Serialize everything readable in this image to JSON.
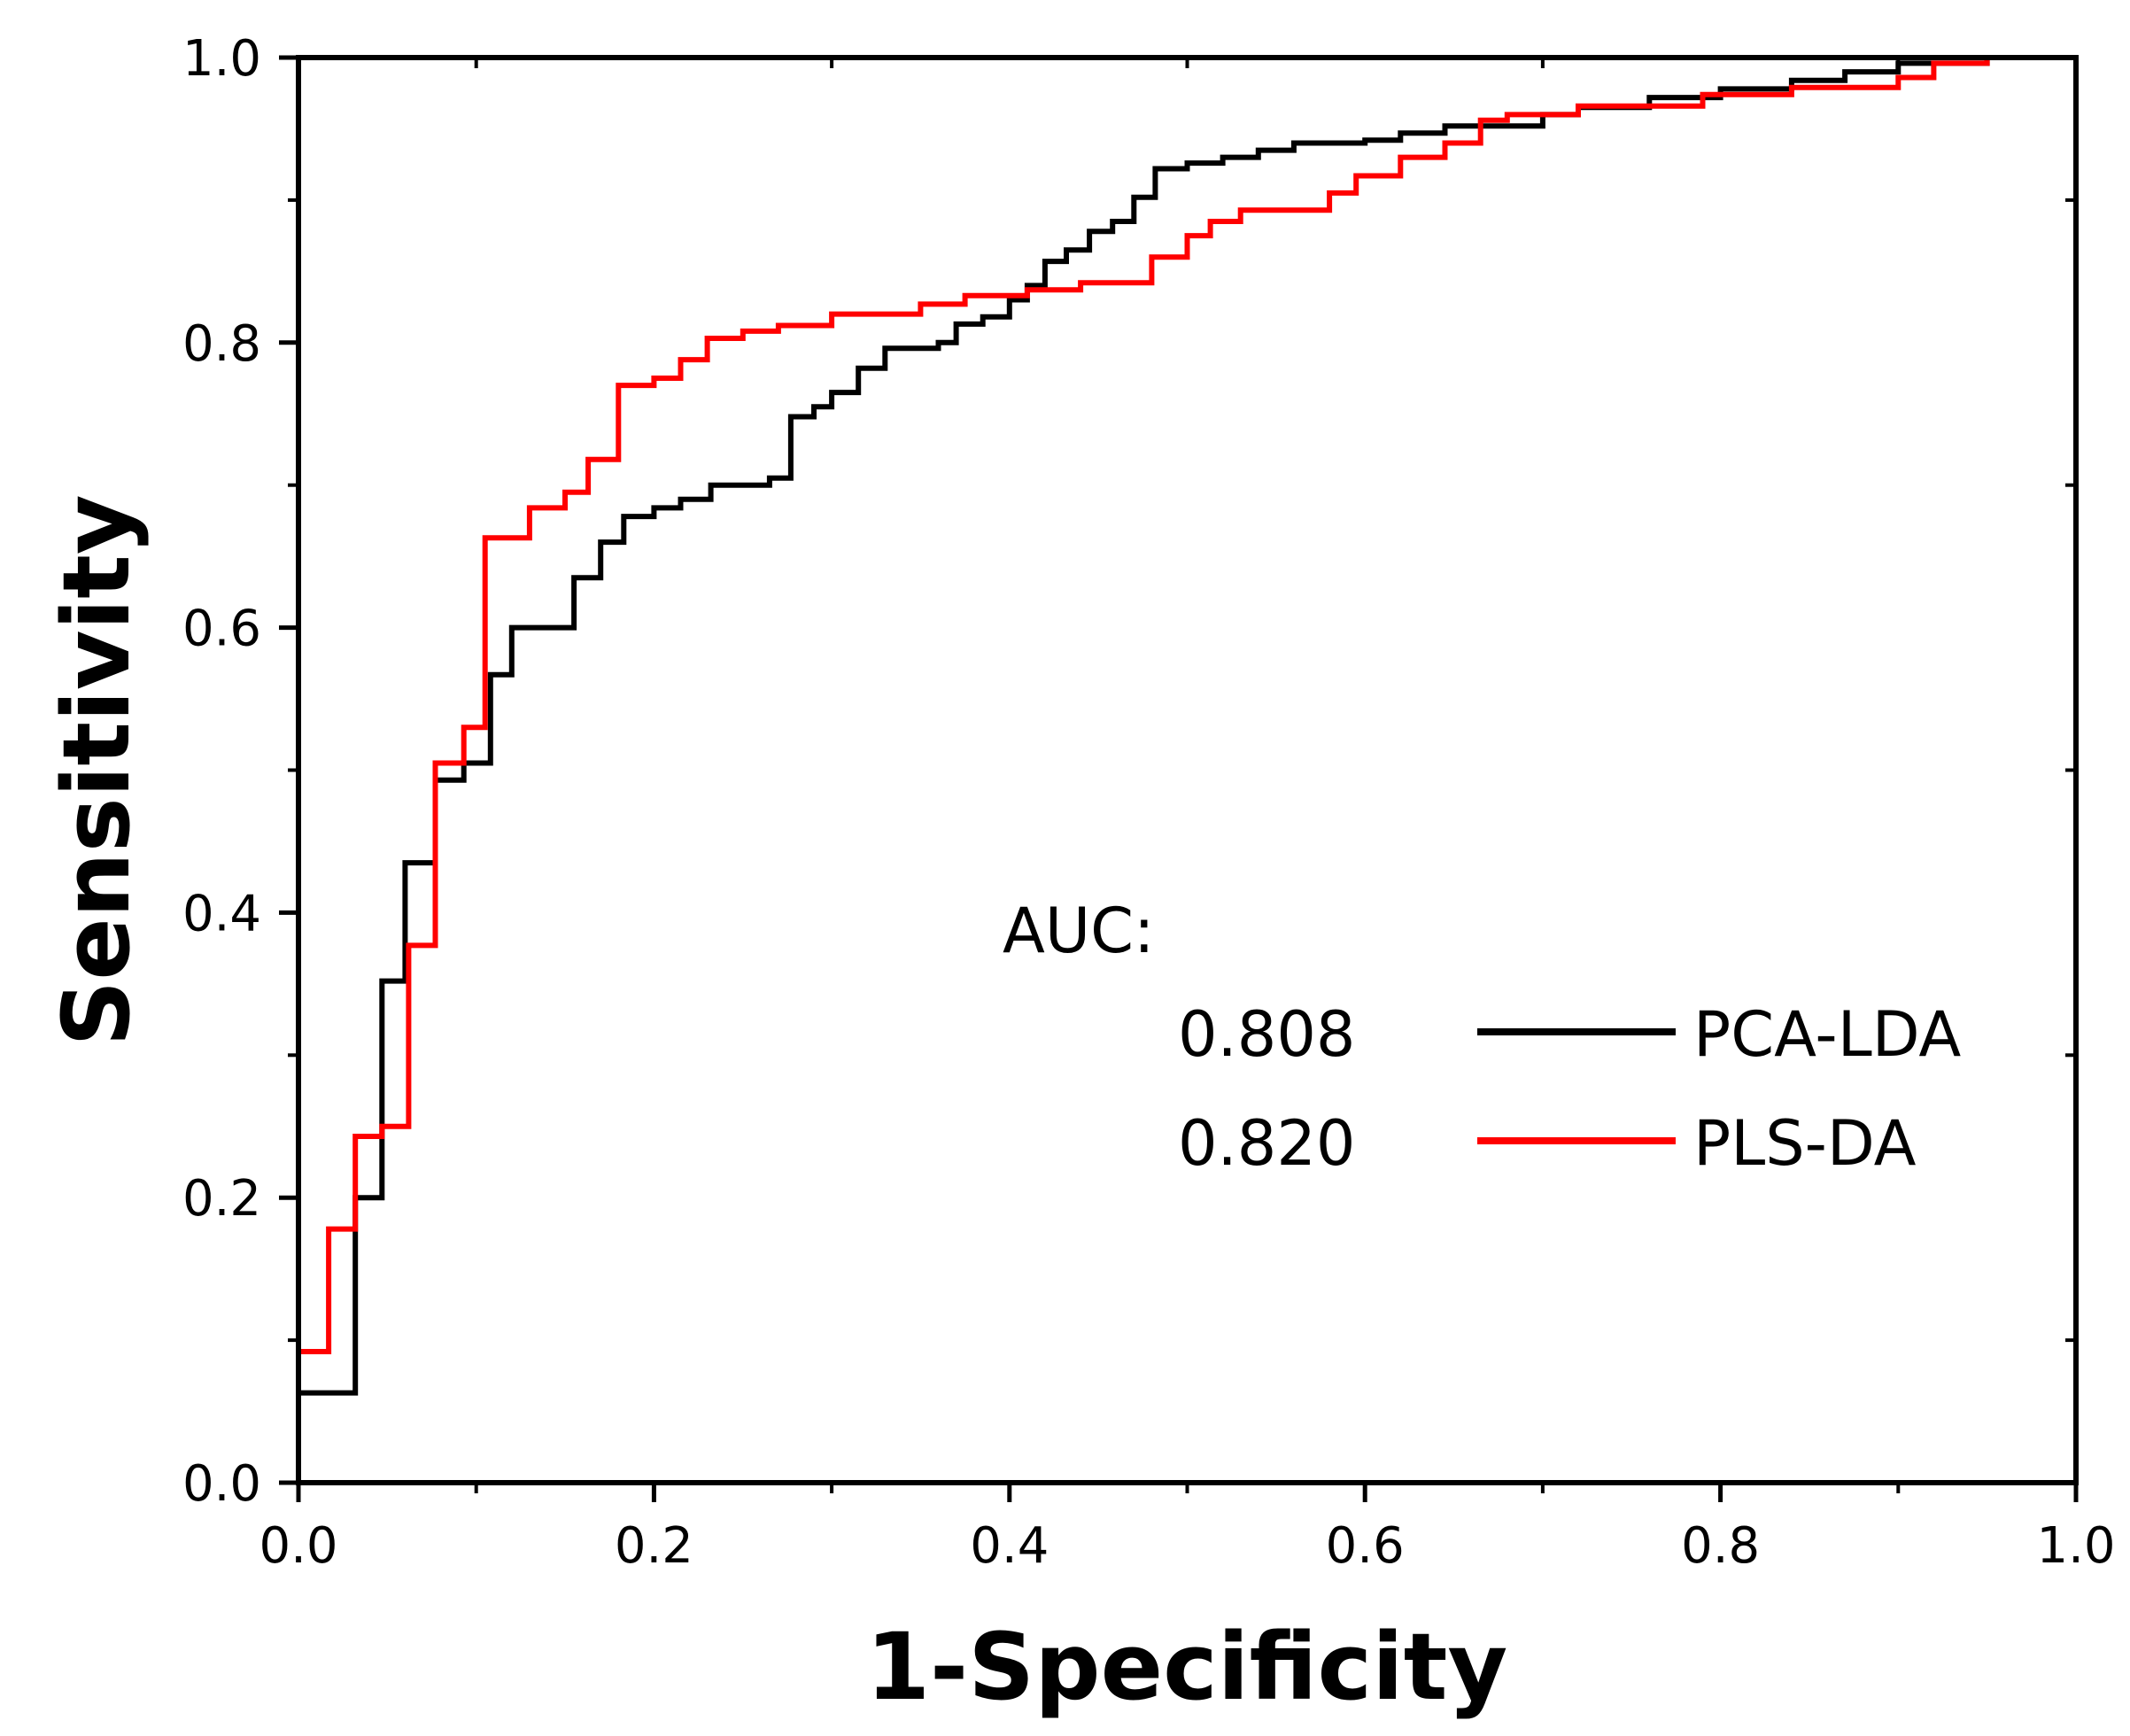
{
  "chart_data": {
    "type": "line",
    "title": "",
    "xlabel": "1-Specificity",
    "ylabel": "Sensitivity",
    "xlim": [
      0,
      1
    ],
    "ylim": [
      0,
      1
    ],
    "xticks": [
      "0.0",
      "0.2",
      "0.4",
      "0.6",
      "0.8",
      "1.0"
    ],
    "yticks": [
      "0.0",
      "0.2",
      "0.4",
      "0.6",
      "0.8",
      "1.0"
    ],
    "grid": false,
    "legend": {
      "position": "center-right",
      "header": "AUC:",
      "entries": [
        {
          "series": "PCA-LDA",
          "auc": "0.808"
        },
        {
          "series": "PLS-DA",
          "auc": "0.820"
        }
      ]
    },
    "series": [
      {
        "name": "PCA-LDA",
        "color": "#000000",
        "auc": 0.808,
        "points": [
          [
            0,
            0
          ],
          [
            0,
            0.063
          ],
          [
            0.032,
            0.063
          ],
          [
            0.032,
            0.2
          ],
          [
            0.047,
            0.2
          ],
          [
            0.047,
            0.352
          ],
          [
            0.06,
            0.352
          ],
          [
            0.06,
            0.435
          ],
          [
            0.077,
            0.435
          ],
          [
            0.077,
            0.493
          ],
          [
            0.093,
            0.493
          ],
          [
            0.093,
            0.505
          ],
          [
            0.108,
            0.505
          ],
          [
            0.108,
            0.567
          ],
          [
            0.12,
            0.567
          ],
          [
            0.12,
            0.6
          ],
          [
            0.155,
            0.6
          ],
          [
            0.155,
            0.635
          ],
          [
            0.17,
            0.635
          ],
          [
            0.17,
            0.66
          ],
          [
            0.183,
            0.66
          ],
          [
            0.183,
            0.678
          ],
          [
            0.2,
            0.678
          ],
          [
            0.2,
            0.684
          ],
          [
            0.215,
            0.684
          ],
          [
            0.215,
            0.69
          ],
          [
            0.232,
            0.69
          ],
          [
            0.232,
            0.7
          ],
          [
            0.265,
            0.7
          ],
          [
            0.265,
            0.705
          ],
          [
            0.277,
            0.705
          ],
          [
            0.277,
            0.748
          ],
          [
            0.29,
            0.748
          ],
          [
            0.29,
            0.755
          ],
          [
            0.3,
            0.755
          ],
          [
            0.3,
            0.765
          ],
          [
            0.315,
            0.765
          ],
          [
            0.315,
            0.782
          ],
          [
            0.33,
            0.782
          ],
          [
            0.33,
            0.796
          ],
          [
            0.36,
            0.796
          ],
          [
            0.36,
            0.8
          ],
          [
            0.37,
            0.8
          ],
          [
            0.37,
            0.813
          ],
          [
            0.385,
            0.813
          ],
          [
            0.385,
            0.818
          ],
          [
            0.4,
            0.818
          ],
          [
            0.4,
            0.83
          ],
          [
            0.41,
            0.83
          ],
          [
            0.41,
            0.84
          ],
          [
            0.42,
            0.84
          ],
          [
            0.42,
            0.857
          ],
          [
            0.432,
            0.857
          ],
          [
            0.432,
            0.865
          ],
          [
            0.445,
            0.865
          ],
          [
            0.445,
            0.878
          ],
          [
            0.458,
            0.878
          ],
          [
            0.458,
            0.885
          ],
          [
            0.47,
            0.885
          ],
          [
            0.47,
            0.902
          ],
          [
            0.482,
            0.902
          ],
          [
            0.482,
            0.922
          ],
          [
            0.5,
            0.922
          ],
          [
            0.5,
            0.926
          ],
          [
            0.52,
            0.926
          ],
          [
            0.52,
            0.93
          ],
          [
            0.54,
            0.93
          ],
          [
            0.54,
            0.935
          ],
          [
            0.56,
            0.935
          ],
          [
            0.56,
            0.94
          ],
          [
            0.6,
            0.94
          ],
          [
            0.6,
            0.942
          ],
          [
            0.62,
            0.942
          ],
          [
            0.62,
            0.947
          ],
          [
            0.645,
            0.947
          ],
          [
            0.645,
            0.952
          ],
          [
            0.7,
            0.952
          ],
          [
            0.7,
            0.96
          ],
          [
            0.72,
            0.96
          ],
          [
            0.72,
            0.965
          ],
          [
            0.76,
            0.965
          ],
          [
            0.76,
            0.972
          ],
          [
            0.8,
            0.972
          ],
          [
            0.8,
            0.978
          ],
          [
            0.84,
            0.978
          ],
          [
            0.84,
            0.984
          ],
          [
            0.87,
            0.984
          ],
          [
            0.87,
            0.99
          ],
          [
            0.9,
            0.99
          ],
          [
            0.9,
            0.996
          ],
          [
            0.95,
            0.996
          ],
          [
            0.95,
            1.0
          ],
          [
            1.0,
            1.0
          ]
        ]
      },
      {
        "name": "PLS-DA",
        "color": "#ff0000",
        "auc": 0.82,
        "points": [
          [
            0,
            0
          ],
          [
            0,
            0.092
          ],
          [
            0.017,
            0.092
          ],
          [
            0.017,
            0.178
          ],
          [
            0.032,
            0.178
          ],
          [
            0.032,
            0.243
          ],
          [
            0.047,
            0.243
          ],
          [
            0.047,
            0.25
          ],
          [
            0.062,
            0.25
          ],
          [
            0.062,
            0.377
          ],
          [
            0.077,
            0.377
          ],
          [
            0.077,
            0.505
          ],
          [
            0.093,
            0.505
          ],
          [
            0.093,
            0.53
          ],
          [
            0.105,
            0.53
          ],
          [
            0.105,
            0.663
          ],
          [
            0.13,
            0.663
          ],
          [
            0.13,
            0.684
          ],
          [
            0.15,
            0.684
          ],
          [
            0.15,
            0.695
          ],
          [
            0.163,
            0.695
          ],
          [
            0.163,
            0.718
          ],
          [
            0.18,
            0.718
          ],
          [
            0.18,
            0.77
          ],
          [
            0.2,
            0.77
          ],
          [
            0.2,
            0.775
          ],
          [
            0.215,
            0.775
          ],
          [
            0.215,
            0.788
          ],
          [
            0.23,
            0.788
          ],
          [
            0.23,
            0.803
          ],
          [
            0.25,
            0.803
          ],
          [
            0.25,
            0.808
          ],
          [
            0.27,
            0.808
          ],
          [
            0.27,
            0.812
          ],
          [
            0.3,
            0.812
          ],
          [
            0.3,
            0.82
          ],
          [
            0.35,
            0.82
          ],
          [
            0.35,
            0.827
          ],
          [
            0.375,
            0.827
          ],
          [
            0.375,
            0.833
          ],
          [
            0.41,
            0.833
          ],
          [
            0.41,
            0.837
          ],
          [
            0.44,
            0.837
          ],
          [
            0.44,
            0.842
          ],
          [
            0.48,
            0.842
          ],
          [
            0.48,
            0.86
          ],
          [
            0.5,
            0.86
          ],
          [
            0.5,
            0.875
          ],
          [
            0.513,
            0.875
          ],
          [
            0.513,
            0.885
          ],
          [
            0.53,
            0.885
          ],
          [
            0.53,
            0.893
          ],
          [
            0.58,
            0.893
          ],
          [
            0.58,
            0.905
          ],
          [
            0.595,
            0.905
          ],
          [
            0.595,
            0.917
          ],
          [
            0.62,
            0.917
          ],
          [
            0.62,
            0.93
          ],
          [
            0.645,
            0.93
          ],
          [
            0.645,
            0.94
          ],
          [
            0.665,
            0.94
          ],
          [
            0.665,
            0.956
          ],
          [
            0.68,
            0.956
          ],
          [
            0.68,
            0.96
          ],
          [
            0.72,
            0.96
          ],
          [
            0.72,
            0.966
          ],
          [
            0.79,
            0.966
          ],
          [
            0.79,
            0.974
          ],
          [
            0.84,
            0.974
          ],
          [
            0.84,
            0.979
          ],
          [
            0.9,
            0.979
          ],
          [
            0.9,
            0.986
          ],
          [
            0.92,
            0.986
          ],
          [
            0.92,
            0.996
          ],
          [
            0.95,
            0.996
          ],
          [
            0.95,
            1.0
          ],
          [
            1.0,
            1.0
          ]
        ]
      }
    ]
  }
}
